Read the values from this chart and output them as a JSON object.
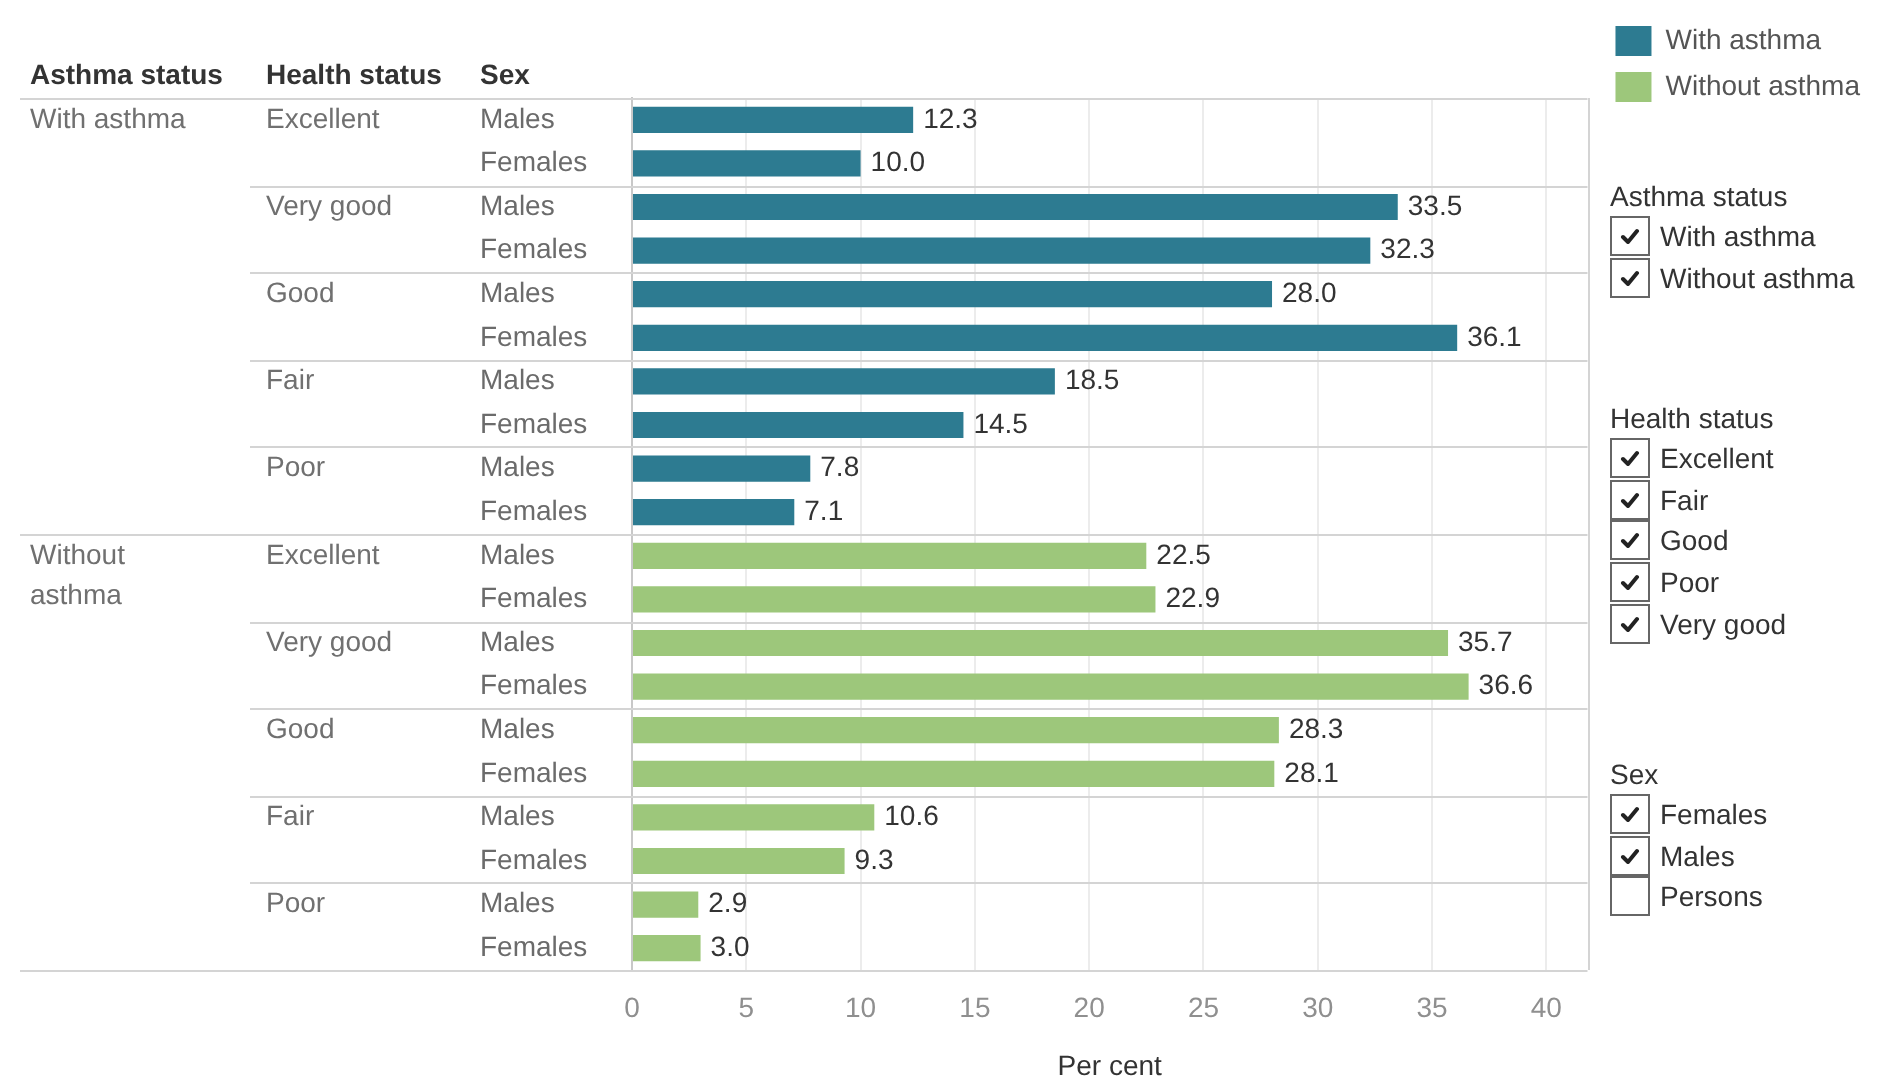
{
  "chart_data": [
    {
      "type": "bar",
      "orientation": "horizontal",
      "categories": [
        "Males",
        "Females",
        "Males",
        "Females",
        "Males",
        "Females",
        "Males",
        "Females",
        "Males",
        "Females",
        "Males",
        "Females",
        "Males",
        "Females",
        "Males",
        "Females",
        "Males",
        "Females",
        "Males",
        "Females"
      ],
      "series": [
        {
          "name": "With asthma",
          "color": "#2d7b91",
          "values": [
            12.3,
            10.0,
            33.5,
            32.3,
            28.0,
            36.1,
            18.5,
            14.5,
            7.8,
            7.1,
            null,
            null,
            null,
            null,
            null,
            null,
            null,
            null,
            null,
            null
          ],
          "value_labels": [
            "12.3",
            "10.0",
            "33.5",
            "32.3",
            "28.0",
            "36.1",
            "18.5",
            "14.5",
            "7.8",
            "7.1",
            null,
            null,
            null,
            null,
            null,
            null,
            null,
            null,
            null,
            null
          ]
        },
        {
          "name": "Without asthma",
          "color": "#9dc77b",
          "values": [
            null,
            null,
            null,
            null,
            null,
            null,
            null,
            null,
            null,
            null,
            22.5,
            22.9,
            35.7,
            36.6,
            28.3,
            28.1,
            10.6,
            9.3,
            2.9,
            3.0
          ],
          "value_labels": [
            null,
            null,
            null,
            null,
            null,
            null,
            null,
            null,
            null,
            null,
            "22.5",
            "22.9",
            "35.7",
            "36.6",
            "28.3",
            "28.1",
            "10.6",
            "9.3",
            "2.9",
            "3.0"
          ]
        }
      ],
      "xlabel": "Per cent",
      "xlim": [
        0,
        41.8
      ],
      "xticks": [
        0,
        5,
        10,
        15,
        20,
        25,
        30,
        35,
        40
      ],
      "grid": "x",
      "legend": "top right",
      "annotations": [
        "Asthma status",
        "Health status",
        "Sex",
        "Excellent",
        "Very good",
        "Good",
        "Fair",
        "Poor",
        "Excellent",
        "Very good",
        "Good",
        "Fair",
        "Poor"
      ]
    },
    {
      "type": "other",
      "title": "Asthma status",
      "categories": [
        "With asthma",
        "Without asthma"
      ]
    },
    {
      "type": "other",
      "title": "Health status",
      "categories": [
        "Excellent",
        "Fair",
        "Good",
        "Poor",
        "Very good"
      ]
    },
    {
      "type": "other",
      "title": "Sex",
      "categories": [
        "Females",
        "Males",
        "Persons"
      ]
    }
  ]
}
